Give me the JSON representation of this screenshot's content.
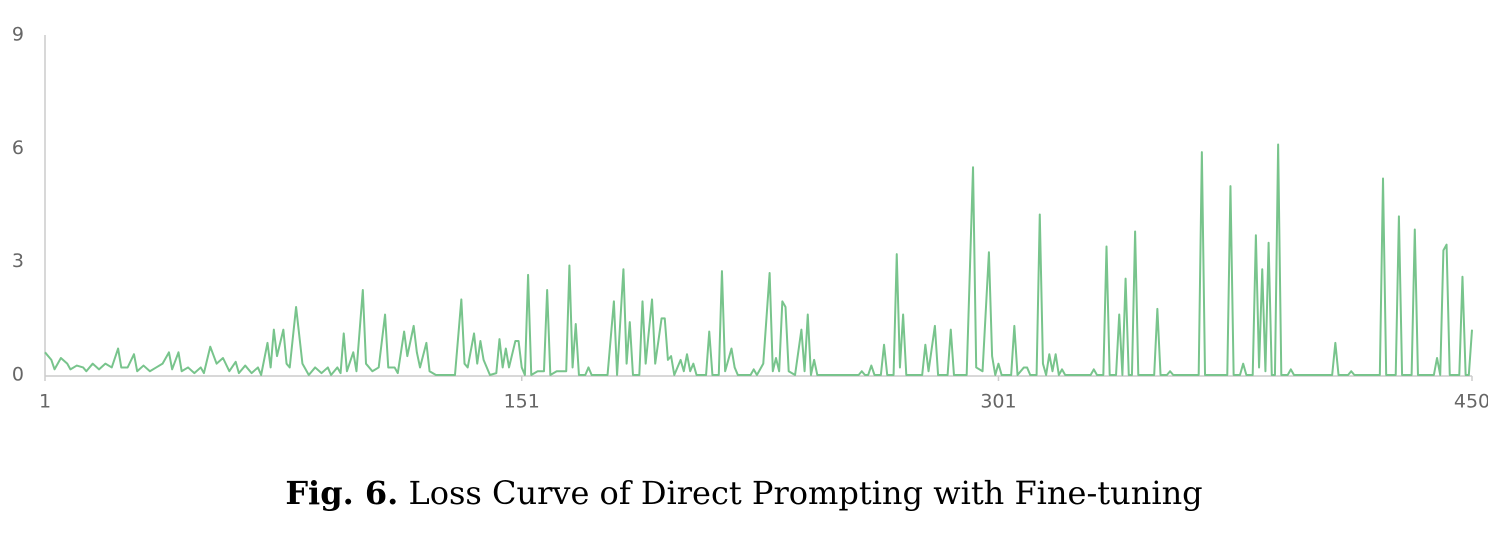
{
  "chart_data": {
    "type": "line",
    "caption_label": "Fig. 6.",
    "caption": "Loss Curve of Direct Prompting with Fine-tuning",
    "xlim": [
      1,
      450
    ],
    "xticks": [
      1,
      151,
      301,
      450
    ],
    "ylim": [
      0,
      9
    ],
    "yticks": [
      0,
      3,
      6,
      9
    ],
    "grid": false,
    "series": [
      {
        "color": "#78c48c",
        "x": [
          1,
          3,
          4,
          6,
          8,
          9,
          11,
          13,
          14,
          16,
          18,
          20,
          22,
          24,
          25,
          27,
          29,
          30,
          32,
          34,
          36,
          38,
          40,
          41,
          43,
          44,
          46,
          48,
          50,
          51,
          53,
          55,
          57,
          59,
          61,
          62,
          64,
          66,
          68,
          69,
          71,
          72,
          73,
          74,
          76,
          77,
          78,
          80,
          82,
          84,
          86,
          88,
          90,
          91,
          93,
          94,
          95,
          96,
          98,
          99,
          101,
          102,
          104,
          106,
          108,
          109,
          111,
          112,
          114,
          115,
          117,
          118,
          119,
          121,
          122,
          124,
          130,
          132,
          133,
          134,
          136,
          137,
          138,
          139,
          141,
          143,
          144,
          145,
          146,
          147,
          149,
          150,
          151,
          152,
          153,
          154,
          156,
          158,
          159,
          160,
          162,
          165,
          166,
          167,
          168,
          169,
          171,
          172,
          173,
          178,
          180,
          181,
          183,
          184,
          185,
          186,
          188,
          189,
          190,
          192,
          193,
          195,
          196,
          197,
          198,
          199,
          201,
          202,
          203,
          204,
          205,
          206,
          209,
          210,
          211,
          213,
          214,
          215,
          217,
          218,
          219,
          223,
          224,
          225,
          227,
          229,
          230,
          231,
          232,
          233,
          234,
          235,
          237,
          239,
          240,
          241,
          242,
          243,
          244,
          257,
          258,
          259,
          260,
          261,
          262,
          264,
          265,
          266,
          268,
          269,
          270,
          271,
          272,
          277,
          278,
          279,
          281,
          282,
          285,
          286,
          287,
          291,
          293,
          294,
          296,
          298,
          299,
          300,
          301,
          302,
          305,
          306,
          307,
          309,
          310,
          311,
          313,
          314,
          315,
          316,
          317,
          318,
          319,
          320,
          321,
          322,
          330,
          331,
          332,
          334,
          335,
          336,
          338,
          339,
          340,
          341,
          342,
          343,
          344,
          345,
          350,
          351,
          352,
          354,
          355,
          356,
          364,
          365,
          366,
          373,
          374,
          375,
          377,
          378,
          379,
          381,
          382,
          383,
          384,
          385,
          386,
          387,
          388,
          389,
          390,
          392,
          393,
          394,
          406,
          407,
          408,
          411,
          412,
          413,
          421,
          422,
          423,
          426,
          427,
          428,
          431,
          432,
          433,
          438,
          439,
          440,
          441,
          442,
          443,
          446,
          447,
          448,
          449,
          450
        ],
        "values": [
          0.6,
          0.4,
          0.15,
          0.45,
          0.3,
          0.15,
          0.25,
          0.2,
          0.1,
          0.3,
          0.15,
          0.3,
          0.2,
          0.7,
          0.2,
          0.2,
          0.55,
          0.1,
          0.25,
          0.1,
          0.2,
          0.3,
          0.6,
          0.15,
          0.6,
          0.1,
          0.2,
          0.05,
          0.2,
          0.05,
          0.75,
          0.3,
          0.45,
          0.1,
          0.35,
          0.05,
          0.25,
          0.05,
          0.2,
          0,
          0.85,
          0.2,
          1.2,
          0.5,
          1.2,
          0.3,
          0.2,
          1.8,
          0.3,
          0,
          0.2,
          0.05,
          0.2,
          0,
          0.2,
          0.05,
          1.1,
          0.1,
          0.6,
          0.1,
          2.25,
          0.3,
          0.1,
          0.2,
          1.6,
          0.2,
          0.2,
          0.05,
          1.15,
          0.5,
          1.3,
          0.6,
          0.2,
          0.85,
          0.1,
          0,
          0,
          2.0,
          0.3,
          0.2,
          1.1,
          0.3,
          0.9,
          0.4,
          0,
          0.05,
          0.95,
          0.2,
          0.7,
          0.2,
          0.9,
          0.9,
          0.2,
          0,
          2.65,
          0,
          0.1,
          0.1,
          2.25,
          0,
          0.1,
          0.1,
          2.9,
          0.2,
          1.35,
          0,
          0,
          0.2,
          0,
          0,
          1.95,
          0,
          2.8,
          0.3,
          1.4,
          0,
          0,
          1.95,
          0.3,
          2.0,
          0.3,
          1.5,
          1.5,
          0.4,
          0.5,
          0,
          0.4,
          0.1,
          0.55,
          0.1,
          0.3,
          0,
          0,
          1.15,
          0,
          0,
          2.75,
          0.1,
          0.7,
          0.2,
          0,
          0,
          0.15,
          0,
          0.3,
          2.7,
          0.1,
          0.45,
          0.1,
          1.95,
          1.8,
          0.1,
          0,
          1.2,
          0.1,
          1.6,
          0,
          0.4,
          0,
          0,
          0.1,
          0,
          0,
          0.25,
          0,
          0,
          0.8,
          0,
          0,
          3.2,
          0.2,
          1.6,
          0,
          0,
          0.8,
          0.1,
          1.3,
          0,
          0,
          1.2,
          0,
          0,
          5.5,
          0.2,
          0.1,
          3.25,
          0.5,
          0,
          0.3,
          0,
          0,
          1.3,
          0,
          0.2,
          0.2,
          0,
          0,
          4.25,
          0.3,
          0,
          0.55,
          0.1,
          0.55,
          0,
          0.15,
          0,
          0,
          0.15,
          0,
          0,
          3.4,
          0,
          0,
          1.6,
          0,
          2.55,
          0,
          0,
          3.8,
          0,
          0,
          1.75,
          0,
          0,
          0.1,
          0,
          0,
          5.9,
          0,
          0,
          5.0,
          0,
          0,
          0.3,
          0,
          0,
          3.7,
          0.2,
          2.8,
          0.1,
          3.5,
          0,
          0,
          6.1,
          0,
          0,
          0.15,
          0,
          0,
          0.85,
          0,
          0,
          0.1,
          0,
          0,
          5.2,
          0,
          0,
          4.2,
          0,
          0,
          3.85,
          0,
          0,
          0.45,
          0,
          3.3,
          3.45,
          0,
          0,
          2.6,
          0,
          0,
          1.2
        ]
      }
    ]
  }
}
